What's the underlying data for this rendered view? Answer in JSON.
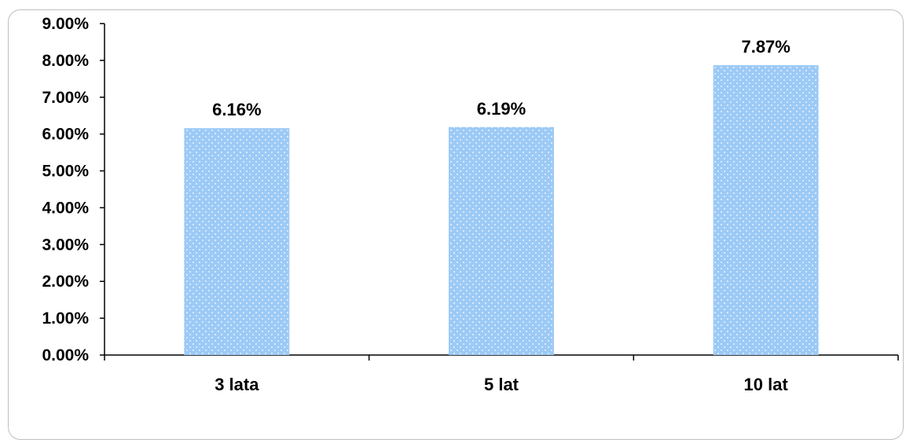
{
  "chart_data": {
    "type": "bar",
    "categories": [
      "3 lata",
      "5 lat",
      "10 lat"
    ],
    "values": [
      6.16,
      6.19,
      7.87
    ],
    "data_labels": [
      "6.16%",
      "6.19%",
      "7.87%"
    ],
    "y_ticks": [
      "0.00%",
      "1.00%",
      "2.00%",
      "3.00%",
      "4.00%",
      "5.00%",
      "6.00%",
      "7.00%",
      "8.00%",
      "9.00%"
    ],
    "ylim": [
      0,
      9
    ],
    "grid": false,
    "legend": "none",
    "bar_color": "#9ccaf6",
    "bar_dot_color": "#ffffff"
  }
}
